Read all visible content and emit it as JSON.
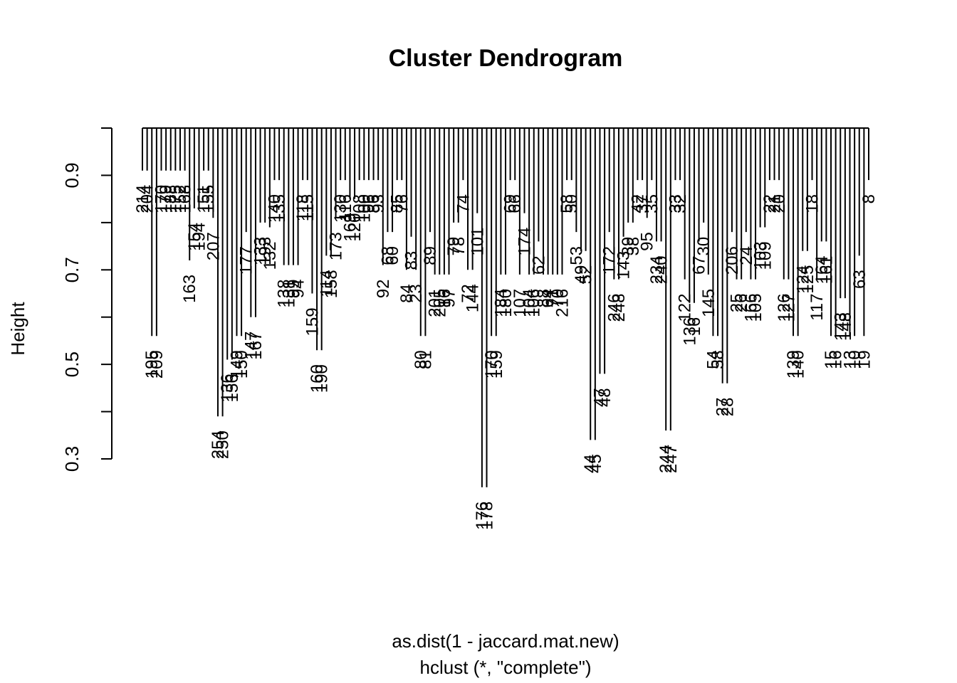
{
  "chart_data": {
    "type": "dendrogram",
    "title": "Cluster Dendrogram",
    "ylabel": "Height",
    "xlabel": "as.dist(1 - jaccard.mat.new)",
    "sub": "hclust (*, \"complete\")",
    "ylim": [
      0.3,
      1.0
    ],
    "yticks": [
      "0.3",
      "0.5",
      "0.7",
      "0.9"
    ],
    "leaves": [
      {
        "label": "214",
        "h": 0.88
      },
      {
        "label": "204",
        "h": 0.88
      },
      {
        "label": "195",
        "h": 0.53
      },
      {
        "label": "209",
        "h": 0.53
      },
      {
        "label": "170",
        "h": 0.88
      },
      {
        "label": "179",
        "h": 0.88
      },
      {
        "label": "188",
        "h": 0.88
      },
      {
        "label": "175",
        "h": 0.88
      },
      {
        "label": "152",
        "h": 0.88
      },
      {
        "label": "168",
        "h": 0.88
      },
      {
        "label": "163",
        "h": 0.69
      },
      {
        "label": "154",
        "h": 0.8
      },
      {
        "label": "194",
        "h": 0.8
      },
      {
        "label": "151",
        "h": 0.88
      },
      {
        "label": "155",
        "h": 0.88
      },
      {
        "label": "207",
        "h": 0.78
      },
      {
        "label": "254",
        "h": 0.36
      },
      {
        "label": "250",
        "h": 0.36
      },
      {
        "label": "136",
        "h": 0.48
      },
      {
        "label": "156",
        "h": 0.48
      },
      {
        "label": "149",
        "h": 0.53
      },
      {
        "label": "150",
        "h": 0.53
      },
      {
        "label": "177",
        "h": 0.75
      },
      {
        "label": "147",
        "h": 0.57
      },
      {
        "label": "167",
        "h": 0.57
      },
      {
        "label": "133",
        "h": 0.77
      },
      {
        "label": "193",
        "h": 0.77
      },
      {
        "label": "132",
        "h": 0.76
      },
      {
        "label": "140",
        "h": 0.86
      },
      {
        "label": "135",
        "h": 0.86
      },
      {
        "label": "138",
        "h": 0.68
      },
      {
        "label": "131",
        "h": 0.68
      },
      {
        "label": "99",
        "h": 0.68
      },
      {
        "label": "94",
        "h": 0.68
      },
      {
        "label": "118",
        "h": 0.86
      },
      {
        "label": "115",
        "h": 0.86
      },
      {
        "label": "159",
        "h": 0.62
      },
      {
        "label": "160",
        "h": 0.5
      },
      {
        "label": "190",
        "h": 0.5
      },
      {
        "label": "114",
        "h": 0.7
      },
      {
        "label": "158",
        "h": 0.7
      },
      {
        "label": "173",
        "h": 0.78
      },
      {
        "label": "130",
        "h": 0.86
      },
      {
        "label": "116",
        "h": 0.86
      },
      {
        "label": "169",
        "h": 0.82
      },
      {
        "label": "120",
        "h": 0.82
      },
      {
        "label": "108",
        "h": 0.86
      },
      {
        "label": "100",
        "h": 0.86
      },
      {
        "label": "96",
        "h": 0.86
      },
      {
        "label": "86",
        "h": 0.86
      },
      {
        "label": "93",
        "h": 0.86
      },
      {
        "label": "92",
        "h": 0.68
      },
      {
        "label": "68",
        "h": 0.75
      },
      {
        "label": "60",
        "h": 0.75
      },
      {
        "label": "85",
        "h": 0.86
      },
      {
        "label": "76",
        "h": 0.86
      },
      {
        "label": "84",
        "h": 0.67
      },
      {
        "label": "83",
        "h": 0.74
      },
      {
        "label": "23",
        "h": 0.67
      },
      {
        "label": "80",
        "h": 0.53
      },
      {
        "label": "81",
        "h": 0.53
      },
      {
        "label": "89",
        "h": 0.75
      },
      {
        "label": "201",
        "h": 0.66
      },
      {
        "label": "205",
        "h": 0.66
      },
      {
        "label": "16",
        "h": 0.66
      },
      {
        "label": "97",
        "h": 0.66
      },
      {
        "label": "79",
        "h": 0.77
      },
      {
        "label": "78",
        "h": 0.77
      },
      {
        "label": "74",
        "h": 0.86
      },
      {
        "label": "72",
        "h": 0.67
      },
      {
        "label": "144",
        "h": 0.67
      },
      {
        "label": "101",
        "h": 0.79
      },
      {
        "label": "176",
        "h": 0.21
      },
      {
        "label": "178",
        "h": 0.21
      },
      {
        "label": "170",
        "h": 0.53
      },
      {
        "label": "159",
        "h": 0.53
      },
      {
        "label": "184",
        "h": 0.66
      },
      {
        "label": "180",
        "h": 0.66
      },
      {
        "label": "69",
        "h": 0.86
      },
      {
        "label": "66",
        "h": 0.86
      },
      {
        "label": "107",
        "h": 0.66
      },
      {
        "label": "174",
        "h": 0.79
      },
      {
        "label": "104",
        "h": 0.66
      },
      {
        "label": "106",
        "h": 0.66
      },
      {
        "label": "62",
        "h": 0.73
      },
      {
        "label": "88",
        "h": 0.66
      },
      {
        "label": "64",
        "h": 0.66
      },
      {
        "label": "71",
        "h": 0.66
      },
      {
        "label": "70",
        "h": 0.66
      },
      {
        "label": "216",
        "h": 0.66
      },
      {
        "label": "58",
        "h": 0.86
      },
      {
        "label": "50",
        "h": 0.86
      },
      {
        "label": "53",
        "h": 0.75
      },
      {
        "label": "49",
        "h": 0.71
      },
      {
        "label": "52",
        "h": 0.71
      },
      {
        "label": "44",
        "h": 0.31
      },
      {
        "label": "45",
        "h": 0.31
      },
      {
        "label": "47",
        "h": 0.45
      },
      {
        "label": "48",
        "h": 0.45
      },
      {
        "label": "172",
        "h": 0.75
      },
      {
        "label": "246",
        "h": 0.65
      },
      {
        "label": "248",
        "h": 0.65
      },
      {
        "label": "143",
        "h": 0.74
      },
      {
        "label": "39",
        "h": 0.77
      },
      {
        "label": "38",
        "h": 0.77
      },
      {
        "label": "42",
        "h": 0.86
      },
      {
        "label": "37",
        "h": 0.86
      },
      {
        "label": "95",
        "h": 0.78
      },
      {
        "label": "35",
        "h": 0.86
      },
      {
        "label": "234",
        "h": 0.73
      },
      {
        "label": "240",
        "h": 0.73
      },
      {
        "label": "244",
        "h": 0.33
      },
      {
        "label": "247",
        "h": 0.33
      },
      {
        "label": "33",
        "h": 0.86
      },
      {
        "label": "32",
        "h": 0.86
      },
      {
        "label": "122",
        "h": 0.65
      },
      {
        "label": "136",
        "h": 0.6
      },
      {
        "label": "16",
        "h": 0.6
      },
      {
        "label": "67",
        "h": 0.73
      },
      {
        "label": "30",
        "h": 0.77
      },
      {
        "label": "145",
        "h": 0.66
      },
      {
        "label": "54",
        "h": 0.53
      },
      {
        "label": "58",
        "h": 0.53
      },
      {
        "label": "27",
        "h": 0.43
      },
      {
        "label": "28",
        "h": 0.43
      },
      {
        "label": "206",
        "h": 0.75
      },
      {
        "label": "25",
        "h": 0.65
      },
      {
        "label": "26",
        "h": 0.65
      },
      {
        "label": "24",
        "h": 0.75
      },
      {
        "label": "166",
        "h": 0.65
      },
      {
        "label": "105",
        "h": 0.65
      },
      {
        "label": "103",
        "h": 0.76
      },
      {
        "label": "109",
        "h": 0.76
      },
      {
        "label": "22",
        "h": 0.86
      },
      {
        "label": "21",
        "h": 0.86
      },
      {
        "label": "20",
        "h": 0.86
      },
      {
        "label": "126",
        "h": 0.65
      },
      {
        "label": "127",
        "h": 0.65
      },
      {
        "label": "139",
        "h": 0.53
      },
      {
        "label": "140",
        "h": 0.53
      },
      {
        "label": "124",
        "h": 0.71
      },
      {
        "label": "125",
        "h": 0.71
      },
      {
        "label": "18",
        "h": 0.86
      },
      {
        "label": "117",
        "h": 0.65
      },
      {
        "label": "164",
        "h": 0.73
      },
      {
        "label": "161",
        "h": 0.73
      },
      {
        "label": "15",
        "h": 0.53
      },
      {
        "label": "16",
        "h": 0.53
      },
      {
        "label": "143",
        "h": 0.61
      },
      {
        "label": "148",
        "h": 0.61
      },
      {
        "label": "13",
        "h": 0.53
      },
      {
        "label": "10",
        "h": 0.53
      },
      {
        "label": "63",
        "h": 0.7
      },
      {
        "label": "19",
        "h": 0.53
      },
      {
        "label": "8",
        "h": 0.86
      }
    ]
  }
}
